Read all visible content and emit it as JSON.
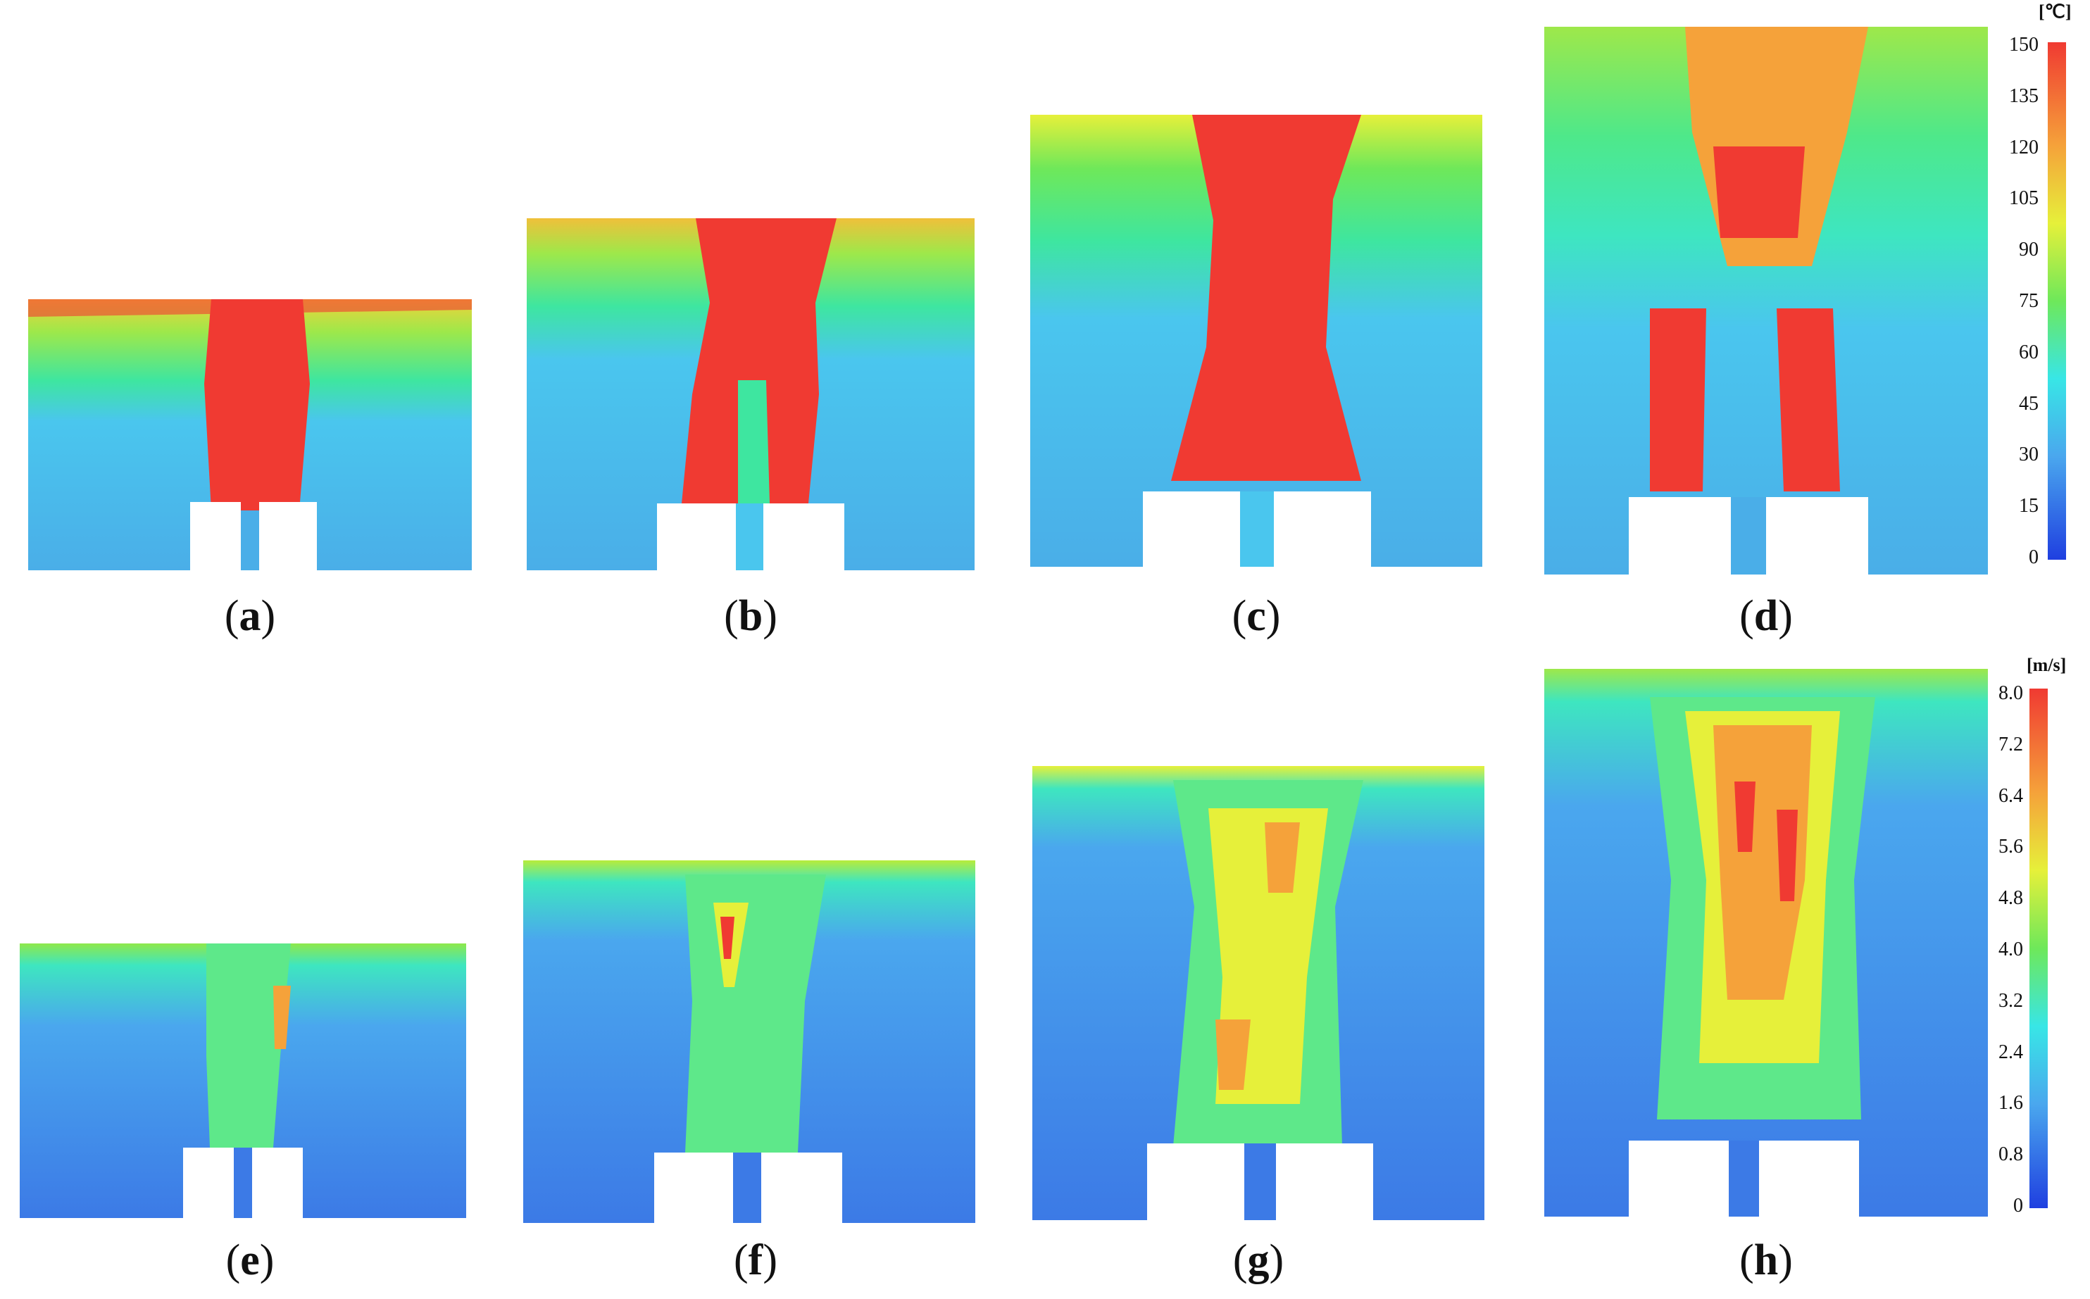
{
  "figure": {
    "panels": [
      {
        "id": "a",
        "label": "a"
      },
      {
        "id": "b",
        "label": "b"
      },
      {
        "id": "c",
        "label": "c"
      },
      {
        "id": "d",
        "label": "d"
      },
      {
        "id": "e",
        "label": "e"
      },
      {
        "id": "f",
        "label": "f"
      },
      {
        "id": "g",
        "label": "g"
      },
      {
        "id": "h",
        "label": "h"
      }
    ],
    "temperature_scale": {
      "unit": "[℃]",
      "ticks": [
        "150",
        "135",
        "120",
        "105",
        "90",
        "75",
        "60",
        "45",
        "30",
        "15",
        "0"
      ],
      "min": 0,
      "max": 150
    },
    "velocity_scale": {
      "unit": "[m/s]",
      "ticks": [
        "8.0",
        "7.2",
        "6.4",
        "5.6",
        "4.8",
        "4.0",
        "3.2",
        "2.4",
        "1.6",
        "0.8",
        "0"
      ],
      "min": 0,
      "max": 8.0
    },
    "colors": {
      "low": "#1f3fe0",
      "cool": "#4aa7ee",
      "cyan": "#38e6e6",
      "green": "#35e06a",
      "yellow": "#e6f03a",
      "orange": "#f5a23a",
      "hot": "#f03a32"
    }
  }
}
